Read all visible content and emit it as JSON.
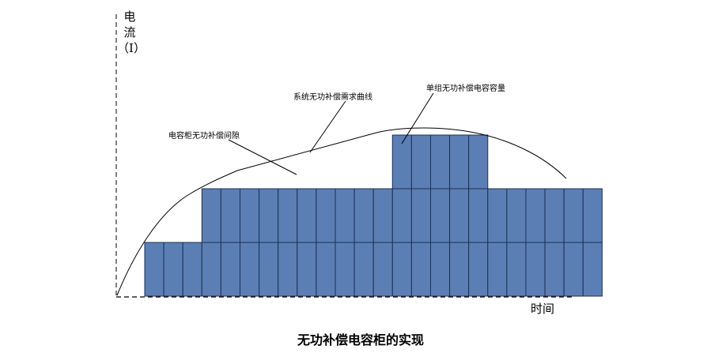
{
  "y_axis_label": [
    "电",
    "流",
    "（I）"
  ],
  "x_axis_label": "时间",
  "caption": "无功补偿电容柜的实现",
  "annotations": {
    "demand_curve": "系统无功补偿需求曲线",
    "cabinet_gap": "电容柜无功补偿间隙",
    "single_bank": "单组无功补偿电容容量"
  },
  "colors": {
    "bank_fill": "#5b7fb5",
    "bank_stroke": "#1f2f4f"
  },
  "stacks": [
    1,
    1,
    1,
    2,
    2,
    2,
    2,
    2,
    2,
    2,
    2,
    2,
    2,
    3,
    3,
    3,
    3,
    3,
    2,
    2,
    2,
    2,
    2,
    2
  ]
}
